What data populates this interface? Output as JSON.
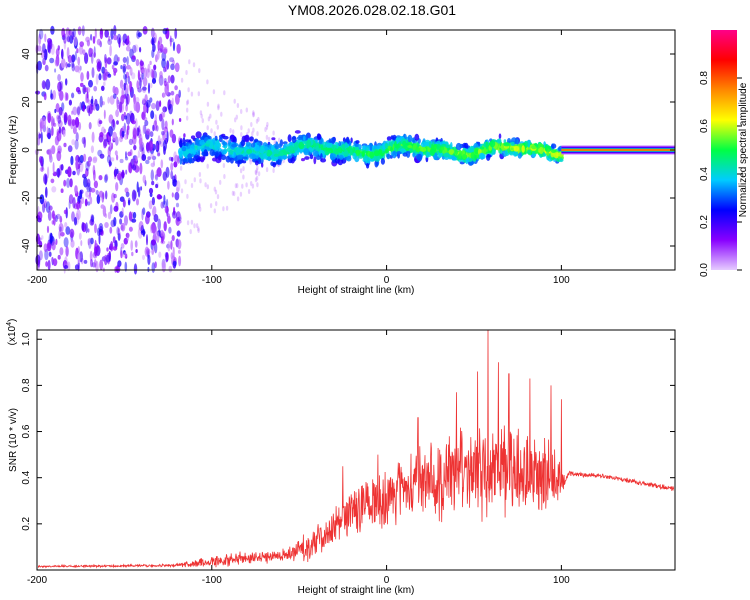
{
  "figure_title": "YM08.2026.028.02.18.G01",
  "chart_data": [
    {
      "type": "heatmap",
      "title": "YM08.2026.028.02.18.G01",
      "xlabel": "Height of straight line (km)",
      "ylabel": "Frequency (Hz)",
      "xlim": [
        -200,
        165
      ],
      "ylim": [
        -50,
        50
      ],
      "xticks": [
        -200,
        -100,
        0,
        100
      ],
      "xtick_labels": [
        "-200",
        "-100",
        "0",
        "100"
      ],
      "yticks": [
        -40,
        -20,
        0,
        20,
        40
      ],
      "ytick_labels": [
        "-40",
        "-20",
        "0",
        "20",
        "40"
      ],
      "grid": false,
      "colorbar": {
        "label": "Normalized spectral amplitude",
        "range": [
          0,
          1
        ],
        "ticks": [
          0.0,
          0.2,
          0.4,
          0.6,
          0.8
        ],
        "tick_labels": [
          "0.0",
          "0.2",
          "0.4",
          "0.6",
          "0.8"
        ],
        "colors": [
          "#e6ccff",
          "#8800ff",
          "#0000ff",
          "#00ccff",
          "#00ff44",
          "#ffff00",
          "#ff8800",
          "#ff0000",
          "#ff0088"
        ]
      },
      "regions": [
        {
          "name": "broadband noise",
          "x_range": [
            -200,
            -118
          ],
          "freq_spread": 50,
          "amplitude": 0.15
        },
        {
          "name": "signal band",
          "x_range": [
            -118,
            100
          ],
          "freq_spread": [
            8,
            4
          ],
          "amplitude": [
            0.25,
            0.4
          ]
        },
        {
          "name": "constant tone",
          "x_range": [
            100,
            165
          ],
          "freq": 0,
          "amplitude": 0.75
        }
      ]
    },
    {
      "type": "line",
      "xlabel": "Height of straight line (km)",
      "ylabel": "SNR (10 * v/v)",
      "multiplier_label": "(x10",
      "multiplier_exponent": "4",
      "xlim": [
        -200,
        165
      ],
      "ylim": [
        0,
        1.04
      ],
      "xticks": [
        -200,
        -100,
        0,
        100
      ],
      "xtick_labels": [
        "-200",
        "-100",
        "0",
        "100"
      ],
      "yticks": [
        0.2,
        0.4,
        0.6,
        0.8,
        1.0
      ],
      "ytick_labels": [
        "0.2",
        "0.4",
        "0.6",
        "0.8",
        "1.0"
      ],
      "grid": false,
      "series_color": "#ee3333",
      "envelope": {
        "x": [
          -200,
          -120,
          -110,
          -80,
          -55,
          -40,
          -30,
          -20,
          0,
          20,
          40,
          60,
          80,
          95,
          101,
          104,
          130,
          165
        ],
        "baseline": [
          0.015,
          0.02,
          0.03,
          0.05,
          0.07,
          0.12,
          0.2,
          0.26,
          0.32,
          0.38,
          0.42,
          0.44,
          0.42,
          0.4,
          0.38,
          0.42,
          0.4,
          0.35
        ],
        "spread": [
          0.004,
          0.006,
          0.02,
          0.03,
          0.03,
          0.08,
          0.08,
          0.1,
          0.12,
          0.15,
          0.18,
          0.2,
          0.18,
          0.15,
          0.05,
          0.012,
          0.01,
          0.01
        ]
      },
      "peaks": [
        {
          "x": -25,
          "y": 0.45
        },
        {
          "x": -5,
          "y": 0.5
        },
        {
          "x": 18,
          "y": 0.66
        },
        {
          "x": 40,
          "y": 0.77
        },
        {
          "x": 52,
          "y": 0.86
        },
        {
          "x": 58,
          "y": 1.04
        },
        {
          "x": 64,
          "y": 0.9
        },
        {
          "x": 70,
          "y": 0.85
        },
        {
          "x": 82,
          "y": 0.83
        },
        {
          "x": 94,
          "y": 0.8
        },
        {
          "x": 100,
          "y": 0.74
        }
      ]
    }
  ]
}
